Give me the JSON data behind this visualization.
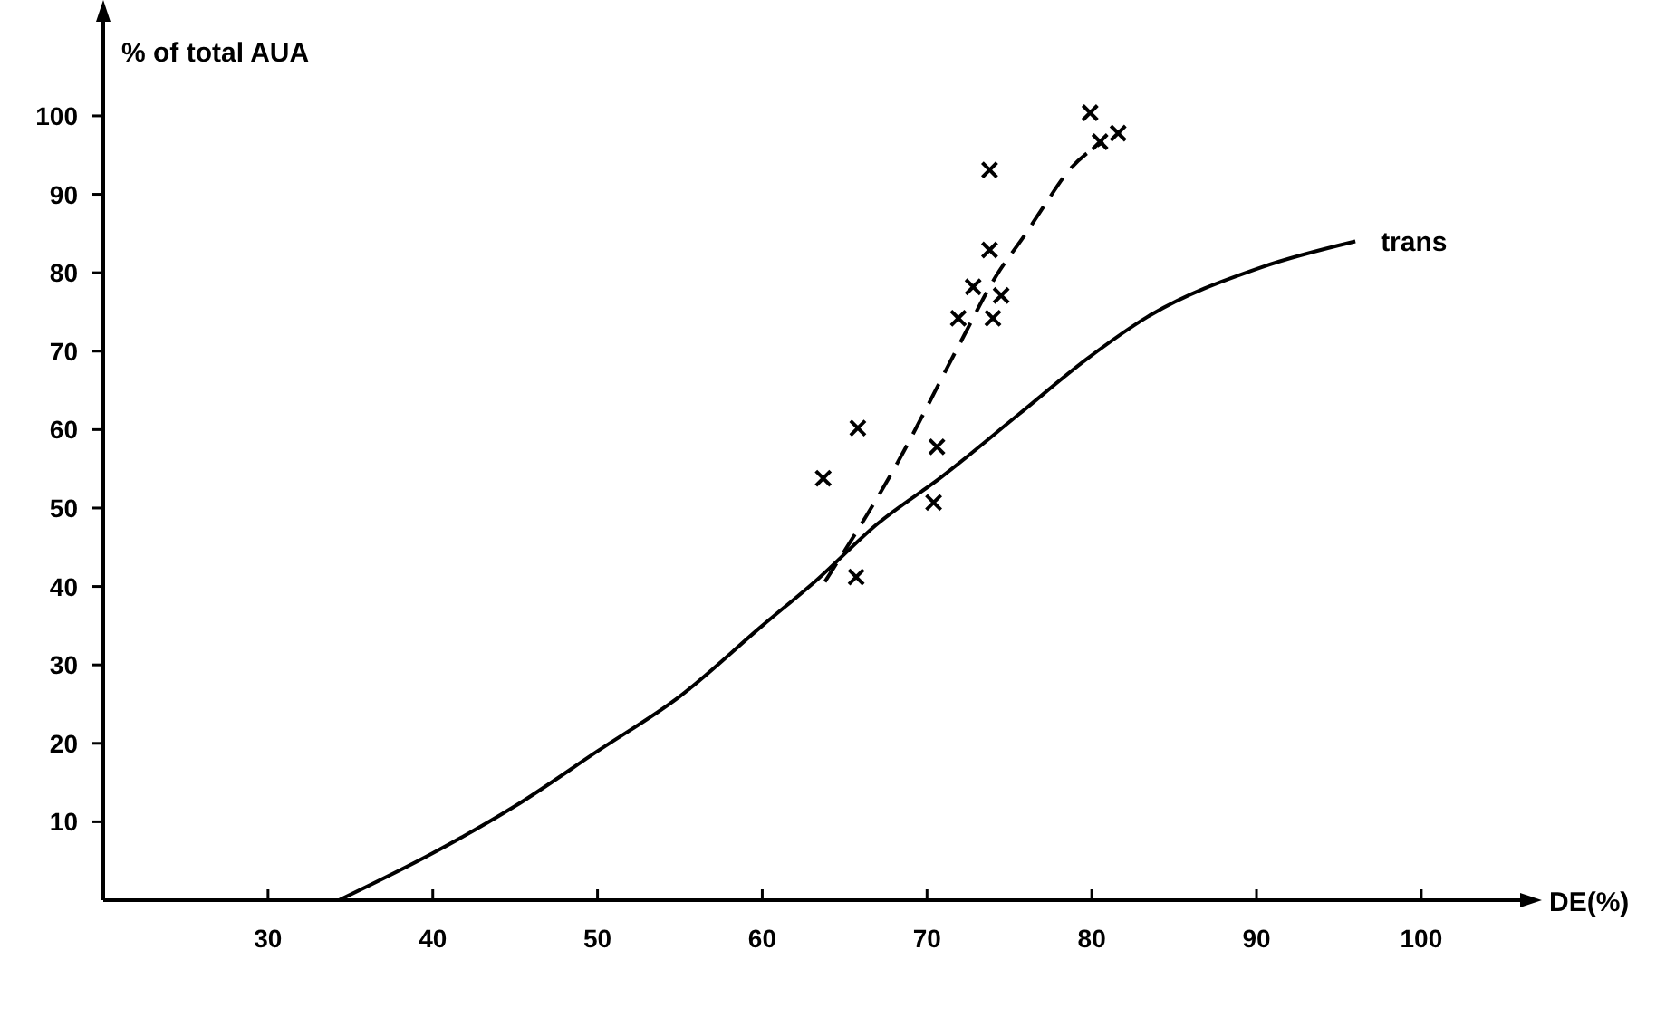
{
  "chart_data": {
    "type": "scatter",
    "xlabel": "DE(%)",
    "ylabel": "% of total AUA",
    "xlim": [
      20,
      106
    ],
    "ylim": [
      0,
      112
    ],
    "xticks": [
      30,
      40,
      50,
      60,
      70,
      80,
      90,
      100
    ],
    "yticks": [
      10,
      20,
      30,
      40,
      50,
      60,
      70,
      80,
      90,
      100
    ],
    "grid": false,
    "series": [
      {
        "color": "#000000",
        "marker": "cross",
        "x": [
          79.9,
          81.6,
          80.5,
          73.8,
          73.8,
          72.8,
          74.5,
          71.9,
          74.0,
          65.8,
          63.7,
          70.6,
          70.4,
          65.7
        ],
        "values": [
          100.4,
          97.8,
          96.7,
          93.1,
          82.9,
          78.2,
          77.1,
          74.2,
          74.2,
          60.2,
          53.8,
          57.8,
          50.7,
          41.2
        ]
      },
      {
        "type": "line",
        "name": "trans",
        "color": "#000000",
        "line_style": "solid",
        "marker": "none",
        "x": [
          34.3,
          40,
          45,
          50,
          55,
          60,
          63.4,
          67,
          70.9,
          75.6,
          79.7,
          83.4,
          90.3,
          96
        ],
        "values": [
          0,
          6,
          12,
          19,
          26,
          35,
          41,
          48,
          54,
          62,
          69,
          74.4,
          80.7,
          84
        ]
      },
      {
        "type": "line",
        "color": "#000000",
        "line_style": "dashed",
        "marker": "none",
        "x": [
          63.8,
          68,
          72,
          74.2,
          76,
          77.1,
          78.6,
          80.7
        ],
        "values": [
          40.6,
          55,
          71,
          79.6,
          85,
          88.5,
          93,
          96.7
        ]
      }
    ]
  }
}
